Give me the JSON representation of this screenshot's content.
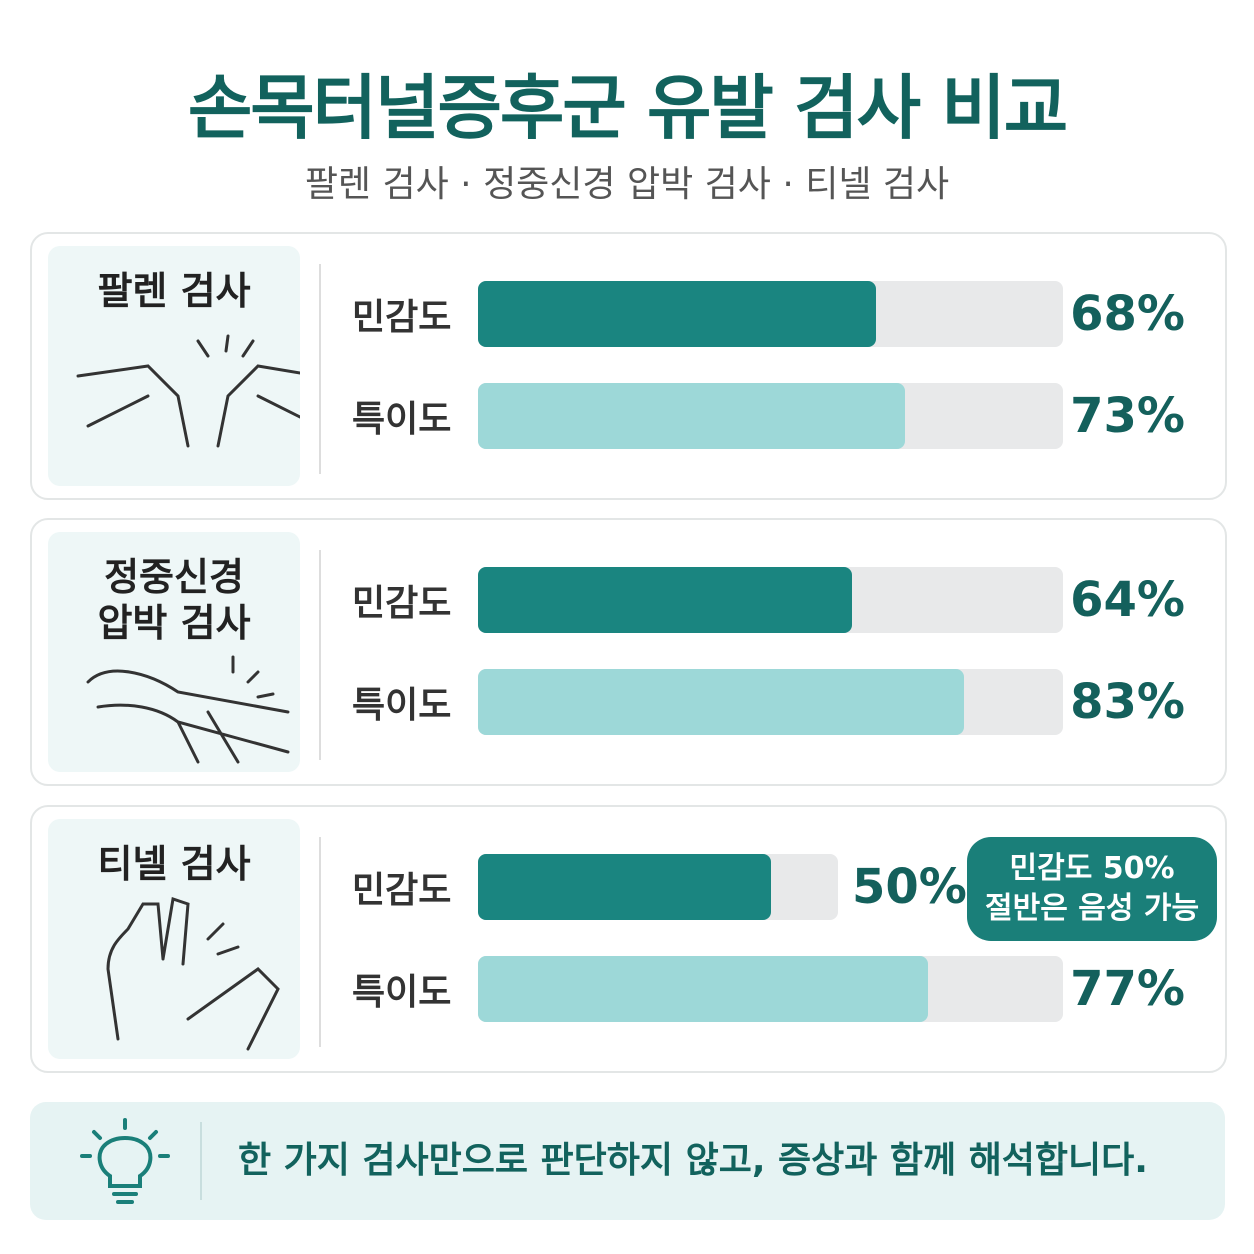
{
  "header": {
    "title": "손목터널증후군 유발 검사 비교",
    "subtitle": "팔렌 검사 · 정중신경 압박 검사 · 티넬 검사"
  },
  "chart_data": [
    {
      "type": "bar",
      "orientation": "horizontal",
      "title": "팔렌 검사",
      "categories": [
        "민감도",
        "특이도"
      ],
      "values": [
        68,
        73
      ],
      "value_labels": [
        "68%",
        "73%"
      ],
      "colors": [
        "#1a8580",
        "#9dd8d8"
      ],
      "xlim": [
        0,
        100
      ]
    },
    {
      "type": "bar",
      "orientation": "horizontal",
      "title": "정중신경 압박 검사",
      "categories": [
        "민감도",
        "특이도"
      ],
      "values": [
        64,
        83
      ],
      "value_labels": [
        "64%",
        "83%"
      ],
      "colors": [
        "#1a8580",
        "#9dd8d8"
      ],
      "xlim": [
        0,
        100
      ]
    },
    {
      "type": "bar",
      "orientation": "horizontal",
      "title": "티넬 검사",
      "categories": [
        "민감도",
        "특이도"
      ],
      "values": [
        50,
        77
      ],
      "value_labels": [
        "50%",
        "77%"
      ],
      "colors": [
        "#1a8580",
        "#9dd8d8"
      ],
      "xlim": [
        0,
        100
      ],
      "annotation": [
        "민감도 50%",
        "절반은 음성 가능"
      ]
    }
  ],
  "footer": {
    "note": "한 가지 검사만으로 판단하지 않고, 증상과 함께 해석합니다."
  }
}
